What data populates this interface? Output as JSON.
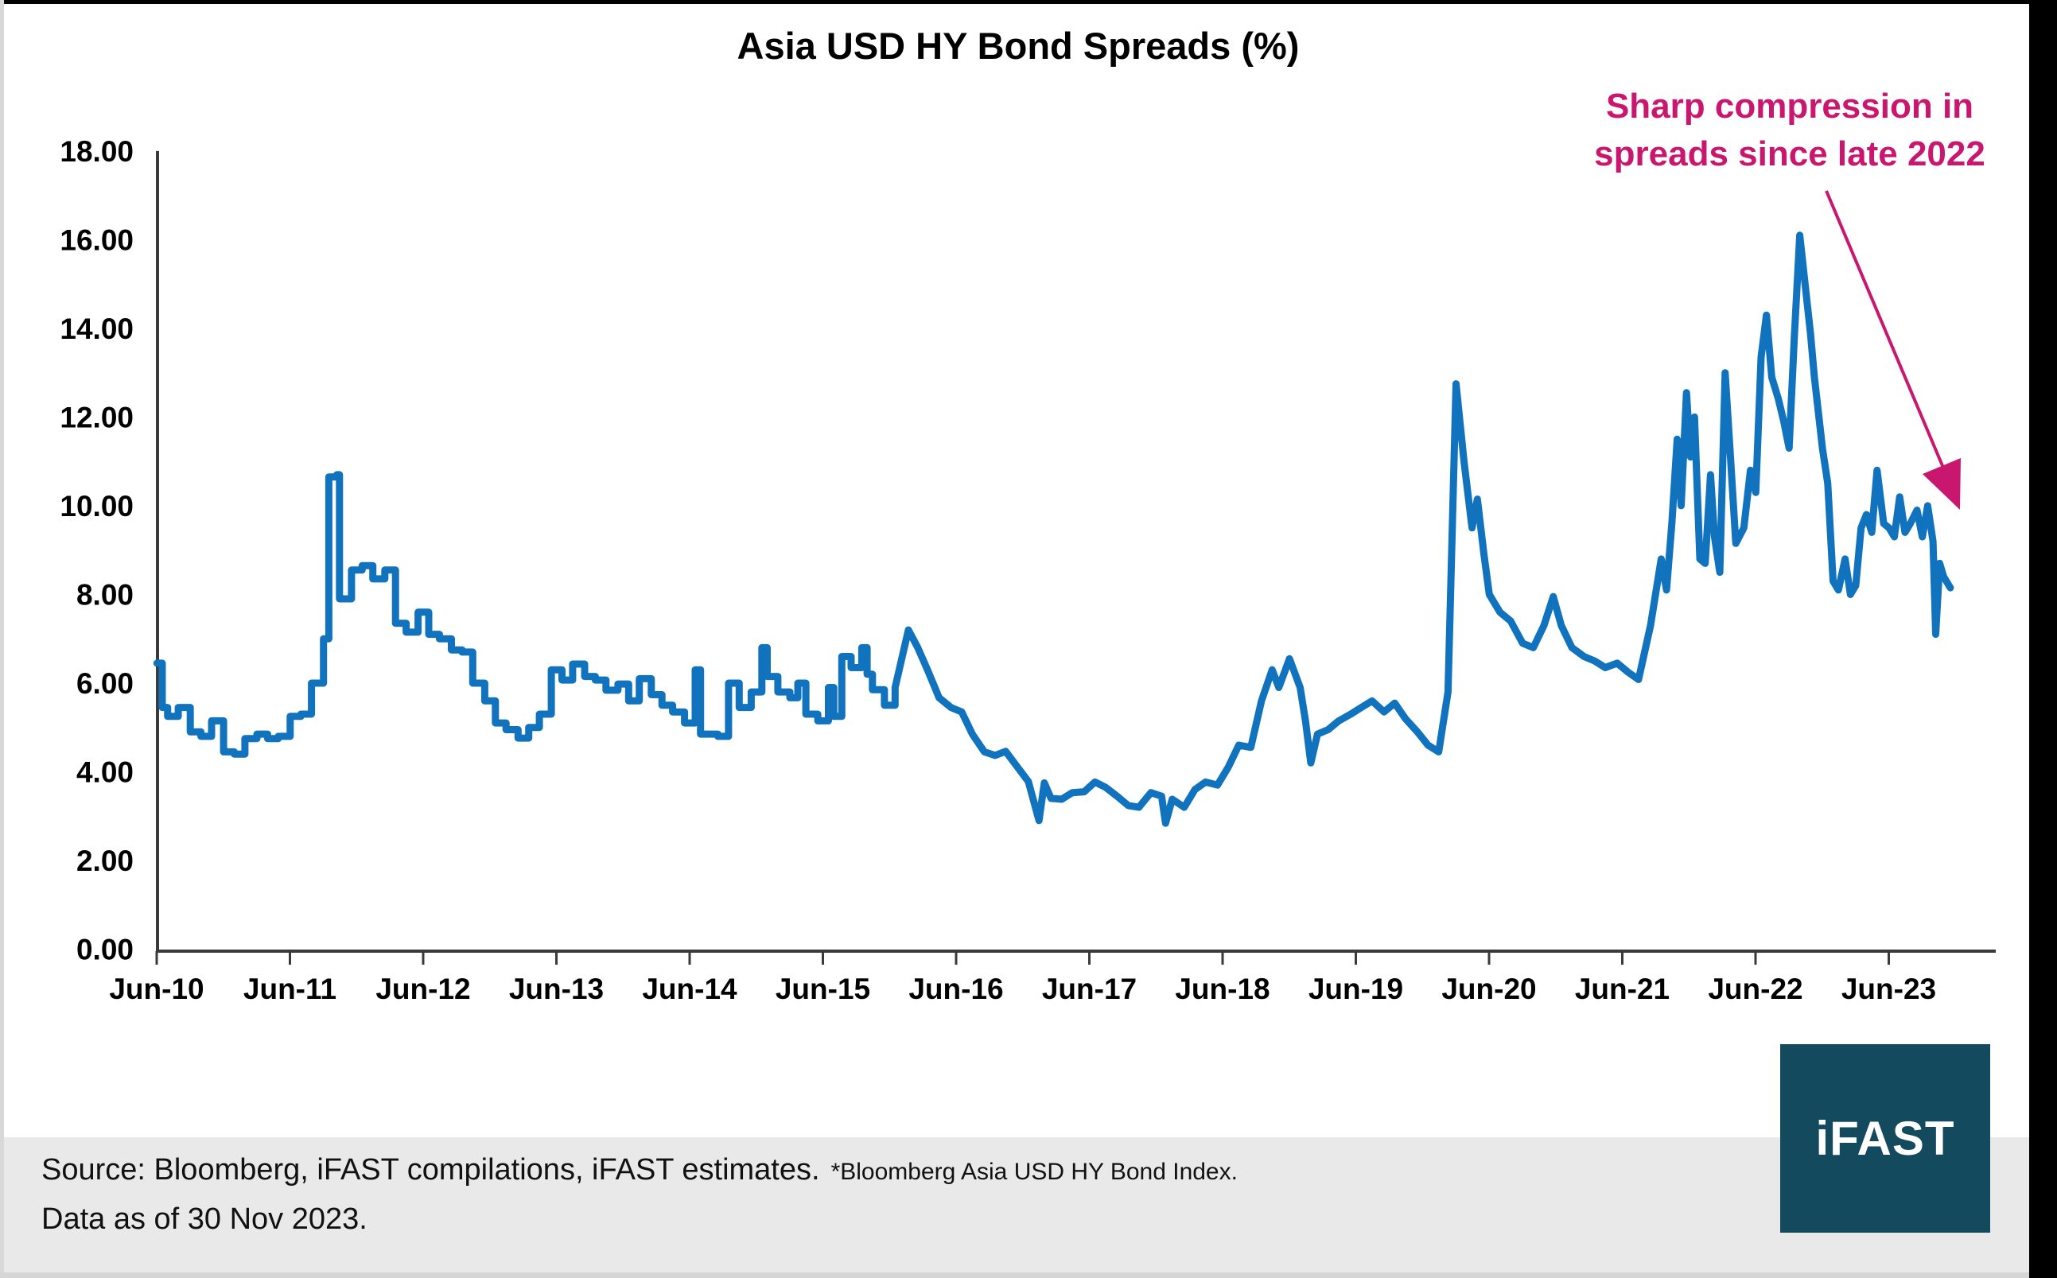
{
  "title": "Asia USD HY Bond Spreads (%)",
  "annotation": {
    "line1": "Sharp compression in",
    "line2": "spreads since late 2022"
  },
  "footer": {
    "source_main": "Source: Bloomberg, iFAST compilations, iFAST estimates.",
    "source_note": "*Bloomberg Asia USD HY Bond Index.",
    "data_as_of": "Data as of 30 Nov 2023."
  },
  "logo": {
    "text": "iFAST"
  },
  "colors": {
    "line": "#1173BD",
    "annotation": "#C9166F",
    "axis": "#3a3a3a",
    "footer_bg": "#e9e9e9",
    "logo_bg": "#134a5e"
  },
  "chart_data": {
    "type": "line",
    "title": "Asia USD HY Bond Spreads (%)",
    "xlabel": "",
    "ylabel": "",
    "ylim": [
      0,
      18
    ],
    "grid": false,
    "legend": "none",
    "y_tick_labels": [
      "0.00",
      "2.00",
      "4.00",
      "6.00",
      "8.00",
      "10.00",
      "12.00",
      "14.00",
      "16.00",
      "18.00"
    ],
    "x_tick_labels": [
      "Jun-10",
      "Jun-11",
      "Jun-12",
      "Jun-13",
      "Jun-14",
      "Jun-15",
      "Jun-16",
      "Jun-17",
      "Jun-18",
      "Jun-19",
      "Jun-20",
      "Jun-21",
      "Jun-22",
      "Jun-23"
    ],
    "series": [
      {
        "name": "Bloomberg Asia USD HY Bond Index spread (%)",
        "x": [
          2010.46,
          2010.5,
          2010.54,
          2010.62,
          2010.71,
          2010.79,
          2010.87,
          2010.96,
          2011.04,
          2011.12,
          2011.21,
          2011.29,
          2011.37,
          2011.46,
          2011.54,
          2011.62,
          2011.71,
          2011.75,
          2011.81,
          2011.83,
          2011.92,
          2012.0,
          2012.08,
          2012.17,
          2012.25,
          2012.33,
          2012.42,
          2012.5,
          2012.58,
          2012.67,
          2012.75,
          2012.83,
          2012.92,
          2013.0,
          2013.08,
          2013.17,
          2013.25,
          2013.33,
          2013.42,
          2013.5,
          2013.58,
          2013.67,
          2013.75,
          2013.83,
          2013.92,
          2014.0,
          2014.08,
          2014.17,
          2014.25,
          2014.33,
          2014.42,
          2014.5,
          2014.54,
          2014.67,
          2014.75,
          2014.83,
          2014.92,
          2015.0,
          2015.04,
          2015.12,
          2015.21,
          2015.27,
          2015.33,
          2015.42,
          2015.5,
          2015.54,
          2015.6,
          2015.67,
          2015.75,
          2015.79,
          2015.83,
          2015.92,
          2016.0,
          2016.1,
          2016.17,
          2016.25,
          2016.33,
          2016.42,
          2016.5,
          2016.58,
          2016.67,
          2016.75,
          2016.83,
          2016.92,
          2017.0,
          2017.08,
          2017.12,
          2017.17,
          2017.25,
          2017.33,
          2017.42,
          2017.5,
          2017.58,
          2017.67,
          2017.75,
          2017.83,
          2017.92,
          2018.0,
          2018.03,
          2018.08,
          2018.17,
          2018.25,
          2018.33,
          2018.42,
          2018.5,
          2018.58,
          2018.67,
          2018.75,
          2018.83,
          2018.88,
          2018.96,
          2019.04,
          2019.08,
          2019.12,
          2019.17,
          2019.25,
          2019.33,
          2019.42,
          2019.5,
          2019.58,
          2019.67,
          2019.75,
          2019.83,
          2019.92,
          2020.0,
          2020.08,
          2020.15,
          2020.21,
          2020.27,
          2020.33,
          2020.37,
          2020.42,
          2020.46,
          2020.54,
          2020.62,
          2020.71,
          2020.79,
          2020.87,
          2020.94,
          2021.0,
          2021.08,
          2021.17,
          2021.25,
          2021.33,
          2021.42,
          2021.5,
          2021.58,
          2021.67,
          2021.75,
          2021.79,
          2021.83,
          2021.87,
          2021.9,
          2021.94,
          2021.97,
          2022.0,
          2022.04,
          2022.08,
          2022.12,
          2022.15,
          2022.19,
          2022.23,
          2022.27,
          2022.31,
          2022.37,
          2022.42,
          2022.46,
          2022.5,
          2022.54,
          2022.58,
          2022.63,
          2022.67,
          2022.71,
          2022.75,
          2022.79,
          2022.83,
          2022.87,
          2022.9,
          2022.96,
          2023.0,
          2023.04,
          2023.08,
          2023.13,
          2023.17,
          2023.21,
          2023.25,
          2023.29,
          2023.33,
          2023.37,
          2023.42,
          2023.46,
          2023.5,
          2023.54,
          2023.58,
          2023.62,
          2023.67,
          2023.71,
          2023.75,
          2023.79,
          2023.81,
          2023.84,
          2023.87,
          2023.92
        ],
        "y": [
          6.45,
          5.45,
          5.25,
          5.45,
          4.9,
          4.8,
          5.15,
          4.45,
          4.4,
          4.75,
          4.85,
          4.75,
          4.8,
          5.25,
          5.3,
          6.0,
          7.0,
          10.65,
          10.7,
          7.9,
          8.55,
          8.65,
          8.35,
          8.55,
          7.35,
          7.15,
          7.6,
          7.1,
          7.0,
          6.75,
          6.7,
          6.0,
          5.6,
          5.1,
          4.95,
          4.76,
          5.0,
          5.3,
          6.3,
          6.07,
          6.43,
          6.15,
          6.07,
          5.84,
          5.98,
          5.6,
          6.1,
          5.74,
          5.5,
          5.35,
          5.1,
          6.3,
          4.85,
          4.8,
          6.0,
          5.45,
          5.8,
          6.8,
          6.15,
          5.8,
          5.67,
          6.0,
          5.3,
          5.15,
          5.9,
          5.25,
          6.6,
          6.35,
          6.8,
          6.2,
          5.85,
          5.5,
          5.9,
          7.2,
          6.8,
          6.25,
          5.67,
          5.45,
          5.35,
          4.85,
          4.45,
          4.37,
          4.46,
          4.1,
          3.78,
          2.9,
          3.75,
          3.4,
          3.38,
          3.53,
          3.55,
          3.77,
          3.65,
          3.44,
          3.24,
          3.2,
          3.53,
          3.45,
          2.84,
          3.38,
          3.2,
          3.6,
          3.77,
          3.7,
          4.1,
          4.6,
          4.55,
          5.6,
          6.3,
          5.9,
          6.55,
          5.9,
          5.15,
          4.2,
          4.85,
          4.95,
          5.15,
          5.3,
          5.45,
          5.6,
          5.35,
          5.55,
          5.2,
          4.9,
          4.6,
          4.45,
          5.8,
          12.75,
          11.0,
          9.5,
          10.15,
          8.9,
          8.0,
          7.6,
          7.4,
          6.9,
          6.8,
          7.3,
          7.95,
          7.3,
          6.8,
          6.6,
          6.5,
          6.35,
          6.45,
          6.25,
          6.08,
          7.3,
          8.8,
          8.1,
          9.6,
          11.5,
          10.0,
          12.55,
          11.1,
          12.0,
          8.8,
          8.7,
          10.7,
          9.3,
          8.5,
          13.0,
          11.1,
          9.15,
          9.5,
          10.8,
          10.3,
          13.35,
          14.3,
          12.9,
          12.4,
          11.9,
          11.3,
          13.85,
          16.1,
          15.0,
          13.9,
          12.9,
          11.3,
          10.5,
          8.3,
          8.1,
          8.8,
          8.0,
          8.2,
          9.5,
          9.8,
          9.4,
          10.8,
          9.6,
          9.5,
          9.3,
          10.2,
          9.4,
          9.6,
          9.9,
          9.3,
          10.0,
          9.2,
          7.1,
          8.7,
          8.4,
          8.15
        ]
      }
    ]
  }
}
